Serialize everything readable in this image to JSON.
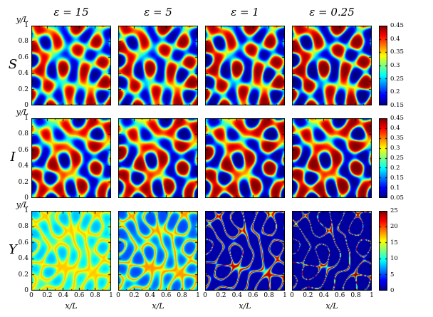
{
  "figure": {
    "column_titles": [
      "ε = 15",
      "ε = 5",
      "ε = 1",
      "ε = 0.25"
    ],
    "row_labels": [
      "S",
      "I",
      "Y"
    ],
    "x_axis_label": "x/L",
    "y_axis_label": "y/L",
    "x_tick_labels": [
      "0",
      "0.2",
      "0.4",
      "0.6",
      "0.8",
      "1"
    ],
    "y_tick_labels": [
      "1",
      "0.8",
      "0.6",
      "0.4",
      "0.2",
      "0"
    ]
  },
  "chart_data": {
    "type": "heatmap",
    "grid": {
      "rows": 3,
      "cols": 4
    },
    "column_variable": {
      "symbol": "ε",
      "values": [
        15,
        5,
        1,
        0.25
      ]
    },
    "x": {
      "label": "x/L",
      "range": [
        0,
        1
      ],
      "ticks": [
        0,
        0.2,
        0.4,
        0.6,
        0.8,
        1
      ]
    },
    "y": {
      "label": "y/L",
      "range": [
        0,
        1
      ],
      "ticks": [
        0,
        0.2,
        0.4,
        0.6,
        0.8,
        1
      ]
    },
    "colormap": "jet",
    "rows": [
      {
        "label": "S",
        "colorbar_range": [
          0.15,
          0.45
        ],
        "colorbar_ticks": [
          0.45,
          0.4,
          0.35,
          0.3,
          0.25,
          0.2,
          0.15
        ],
        "pattern": "labyrinthine spot-stripe field, nearly identical across all ε columns"
      },
      {
        "label": "I",
        "colorbar_range": [
          0.05,
          0.45
        ],
        "colorbar_ticks": [
          0.45,
          0.4,
          0.35,
          0.3,
          0.25,
          0.2,
          0.15,
          0.1,
          0.05
        ],
        "pattern": "labyrinthine spot-stripe field, nearly identical across all ε columns"
      },
      {
        "label": "Y",
        "colorbar_range": [
          0,
          25
        ],
        "colorbar_ticks": [
          25,
          20,
          15,
          10,
          5,
          0
        ],
        "pattern": "diffuse interface pattern at large ε that sharpens into thin high-amplitude filaments as ε decreases"
      }
    ],
    "pattern_model": {
      "modes_S": [
        [
          24.6,
          4.1,
          0.8,
          1.0
        ],
        [
          12.4,
          21.3,
          2.9,
          0.9
        ],
        [
          -17.9,
          18.0,
          5.2,
          0.95
        ],
        [
          23.3,
          -10.4,
          1.7,
          0.85
        ],
        [
          3.6,
          -24.9,
          3.9,
          0.8
        ],
        [
          -24.2,
          -7.9,
          0.4,
          0.75
        ],
        [
          15.4,
          19.6,
          4.6,
          0.7
        ],
        [
          -9.1,
          23.1,
          2.2,
          0.65
        ]
      ],
      "modes_I": [
        [
          24.6,
          4.1,
          3.1,
          1.0
        ],
        [
          12.4,
          21.3,
          0.7,
          0.85
        ],
        [
          -17.9,
          18.0,
          2.4,
          0.9
        ],
        [
          23.3,
          -10.4,
          4.9,
          0.9
        ],
        [
          3.6,
          -24.9,
          1.2,
          0.75
        ],
        [
          -24.2,
          -7.9,
          3.8,
          0.8
        ],
        [
          15.4,
          19.6,
          0.1,
          0.6
        ],
        [
          -9.1,
          23.1,
          5.5,
          0.7
        ]
      ],
      "modes_Y": [
        [
          24.6,
          4.1,
          1.4,
          1.0
        ],
        [
          12.4,
          21.3,
          3.5,
          0.9
        ],
        [
          -17.9,
          18.0,
          5.8,
          0.95
        ],
        [
          23.3,
          -10.4,
          2.3,
          0.85
        ],
        [
          3.6,
          -24.9,
          4.5,
          0.8
        ],
        [
          -24.2,
          -7.9,
          1.0,
          0.75
        ],
        [
          15.4,
          19.6,
          5.2,
          0.7
        ],
        [
          -9.1,
          23.1,
          2.8,
          0.65
        ]
      ],
      "column_perturb": [
        [
          0,
          0,
          0,
          0
        ],
        [
          21,
          -14,
          1.0,
          0.12
        ],
        [
          -13,
          22,
          2.5,
          0.18
        ],
        [
          18,
          17,
          4.2,
          0.24
        ]
      ],
      "sharpness_by_column": [
        0.9,
        1.0,
        1.1,
        1.2
      ],
      "Y_ridge": {
        "center": 0.5,
        "sigma": [
          0.3,
          0.22,
          0.1,
          0.065
        ],
        "base": [
          0.18,
          0.15,
          0.04,
          0.03
        ],
        "gain": [
          0.5,
          0.58,
          0.92,
          0.97
        ]
      }
    }
  }
}
